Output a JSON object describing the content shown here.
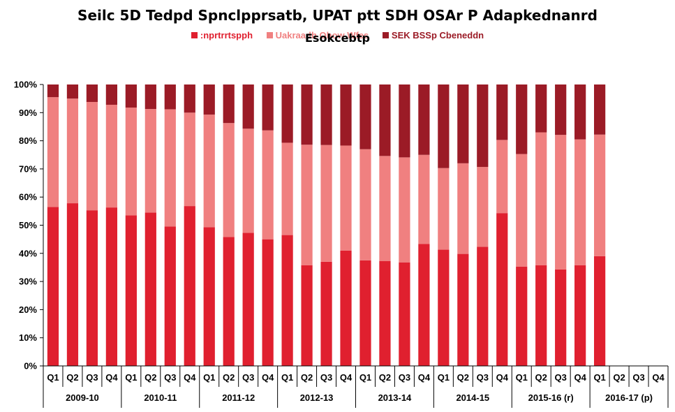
{
  "chart_data": {
    "type": "bar",
    "stacked": true,
    "percent": true,
    "title": "Seilc 5D Tedpd Spnclpprsatb, UPAT ptt SDH OSAr P Adapkednanrd",
    "subtitle": "Esokcebtp",
    "ylim": [
      0,
      100
    ],
    "y_ticks": [
      "0%",
      "10%",
      "20%",
      "30%",
      "40%",
      "50%",
      "60%",
      "70%",
      "80%",
      "90%",
      "100%"
    ],
    "grid": false,
    "legend_position": "top",
    "categories": [
      "Q1",
      "Q2",
      "Q3",
      "Q4",
      "Q1",
      "Q2",
      "Q3",
      "Q4",
      "Q1",
      "Q2",
      "Q3",
      "Q4",
      "Q1",
      "Q2",
      "Q3",
      "Q4",
      "Q1",
      "Q2",
      "Q3",
      "Q4",
      "Q1",
      "Q2",
      "Q3",
      "Q4",
      "Q1",
      "Q2",
      "Q3",
      "Q4",
      "Q1",
      "Q2",
      "Q3",
      "Q4"
    ],
    "groups": [
      "2009-10",
      "2010-11",
      "2011-12",
      "2012-13",
      "2013-14",
      "2014-15",
      "2015-16 (r)",
      "2016-17 (p)"
    ],
    "series": [
      {
        "name": ":nprtrrtspph",
        "color": "#e0202f",
        "values": [
          56.5,
          57.8,
          55.3,
          56.3,
          53.5,
          54.5,
          49.5,
          56.8,
          49.3,
          45.8,
          47.3,
          45.0,
          46.5,
          35.8,
          37.0,
          41.0,
          37.5,
          37.3,
          36.8,
          43.3,
          41.3,
          39.8,
          42.3,
          54.3,
          35.3,
          35.8,
          34.3,
          35.8,
          39.0,
          null,
          null,
          null
        ]
      },
      {
        "name": "Uakraadh Ohow Wfes",
        "color": "#f08080",
        "values": [
          39.0,
          37.2,
          38.5,
          36.5,
          38.3,
          36.8,
          41.7,
          33.2,
          40.0,
          40.5,
          37.0,
          38.7,
          32.8,
          42.8,
          41.5,
          37.3,
          39.5,
          37.3,
          37.3,
          31.7,
          29.0,
          32.2,
          28.4,
          26.0,
          40.0,
          47.2,
          47.8,
          44.7,
          43.2,
          null,
          null,
          null
        ]
      },
      {
        "name": "SEK BSSp Cbeneddn",
        "color": "#9b1b26",
        "values": [
          4.5,
          5.0,
          6.2,
          7.2,
          8.2,
          8.7,
          8.8,
          10.0,
          10.7,
          13.7,
          15.7,
          16.3,
          20.7,
          21.4,
          21.5,
          21.7,
          23.0,
          25.4,
          25.9,
          25.0,
          29.7,
          28.0,
          29.3,
          19.7,
          24.7,
          17.0,
          17.9,
          19.5,
          17.8,
          null,
          null,
          null
        ]
      }
    ]
  }
}
